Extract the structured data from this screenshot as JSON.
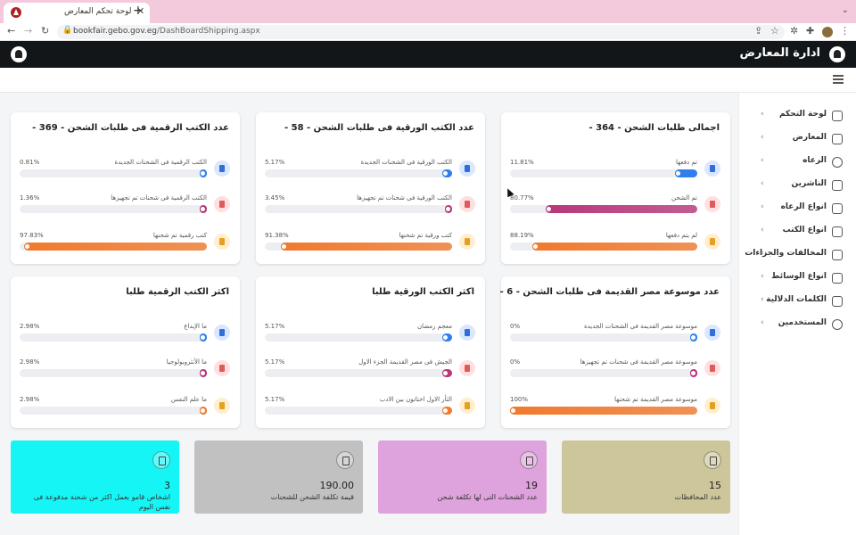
{
  "browser": {
    "tab_title": "لوحة تحكم المعارض",
    "url_host": "bookfair.gebo.gov.eg",
    "url_path": "/DashBoardShipping.aspx"
  },
  "app": {
    "title": "ادارة المعارض"
  },
  "sidebar": {
    "items": [
      {
        "label": "لوحة التحكم",
        "icon": "chart-icon"
      },
      {
        "label": "المعارض",
        "icon": "home-icon"
      },
      {
        "label": "الرعاه",
        "icon": "gear-icon"
      },
      {
        "label": "الناشرين",
        "icon": "lock-icon"
      },
      {
        "label": "انواع الرعاه",
        "icon": "box-icon"
      },
      {
        "label": "انواع الكتب",
        "icon": "bolt-icon"
      },
      {
        "label": "المخالفات والجزاءات",
        "icon": "grid-icon"
      },
      {
        "label": "انواع الوسائط",
        "icon": "document-icon"
      },
      {
        "label": "الكلمات الدلالية",
        "icon": "document-icon"
      },
      {
        "label": "المستخدمين",
        "icon": "users-icon"
      }
    ]
  },
  "cards": [
    {
      "title": "اجمالى طلبات الشحن - 364 -",
      "rows": [
        {
          "label": "تم دفعها",
          "pct": "11.81%",
          "value": 11.81,
          "color": "#2f80ed",
          "icon_bg": "#dbe7ff",
          "icon_color": "#2f6fdc",
          "icon": "bookmark-icon"
        },
        {
          "label": "تم الشحن",
          "pct": "80.77%",
          "value": 80.77,
          "color": "#b8387a",
          "icon_bg": "#ffe0e0",
          "icon_color": "#e05a5a",
          "icon": "book-icon"
        },
        {
          "label": "لم يتم دفعها",
          "pct": "88.19%",
          "value": 88.19,
          "color": "#f07a2e",
          "icon_bg": "#ffefd0",
          "icon_color": "#e6a020",
          "icon": "bookmark-icon"
        }
      ]
    },
    {
      "title": "عدد الكتب الورقية فى طلبات الشحن - 58 -",
      "rows": [
        {
          "label": "الكتب الورقية فى الشحنات الجديدة",
          "pct": "5.17%",
          "value": 5.17,
          "color": "#2f80ed",
          "icon_bg": "#dbe7ff",
          "icon_color": "#2f6fdc",
          "icon": "bookmark-icon"
        },
        {
          "label": "الكتب الورقية فى شحنات تم تجهيزها",
          "pct": "3.45%",
          "value": 3.45,
          "color": "#b8387a",
          "icon_bg": "#ffe0e0",
          "icon_color": "#e05a5a",
          "icon": "book-icon"
        },
        {
          "label": "كتب ورقية تم شحنها",
          "pct": "91.38%",
          "value": 91.38,
          "color": "#f07a2e",
          "icon_bg": "#ffefd0",
          "icon_color": "#e6a020",
          "icon": "bookmark-icon"
        }
      ]
    },
    {
      "title": "عدد الكتب الرقمية فى طلبات الشحن - 369 -",
      "rows": [
        {
          "label": "الكتب الرقمية فى الشحنات الجديدة",
          "pct": "0.81%",
          "value": 0.81,
          "color": "#2f80ed",
          "icon_bg": "#dbe7ff",
          "icon_color": "#2f6fdc",
          "icon": "bookmark-icon"
        },
        {
          "label": "الكتب الرقمية فى شحنات تم تجهيزها",
          "pct": "1.36%",
          "value": 1.36,
          "color": "#b8387a",
          "icon_bg": "#ffe0e0",
          "icon_color": "#e05a5a",
          "icon": "book-icon"
        },
        {
          "label": "كتب رقمية تم شحنها",
          "pct": "97.83%",
          "value": 97.83,
          "color": "#f07a2e",
          "icon_bg": "#ffefd0",
          "icon_color": "#e6a020",
          "icon": "bookmark-icon"
        }
      ]
    },
    {
      "title": "عدد موسوعة مصر القديمة فى طلبات الشحن - 6 -",
      "rows": [
        {
          "label": "موسوعة مصر القديمة فى الشحنات الجديدة",
          "pct": "0%",
          "value": 0,
          "color": "#2f80ed",
          "icon_bg": "#dbe7ff",
          "icon_color": "#2f6fdc",
          "icon": "bookmark-icon"
        },
        {
          "label": "موسوعة مصر القديمة فى شحنات تم تجهيزها",
          "pct": "0%",
          "value": 0,
          "color": "#b8387a",
          "icon_bg": "#ffe0e0",
          "icon_color": "#e05a5a",
          "icon": "book-icon"
        },
        {
          "label": "موسوعة مصر القديمة تم شحنها",
          "pct": "100%",
          "value": 100,
          "color": "#f07a2e",
          "icon_bg": "#ffefd0",
          "icon_color": "#e6a020",
          "icon": "bookmark-icon"
        }
      ]
    },
    {
      "title": "اكثر الكتب الورقية طلبا",
      "rows": [
        {
          "label": "معجم رمضان",
          "pct": "5.17%",
          "value": 5.17,
          "color": "#2f80ed",
          "icon_bg": "#dbe7ff",
          "icon_color": "#2f6fdc",
          "icon": "bookmark-icon"
        },
        {
          "label": "الجيش فى مصر القديمة الجزء الاول",
          "pct": "5.17%",
          "value": 5.17,
          "color": "#b8387a",
          "icon_bg": "#ffe0e0",
          "icon_color": "#e05a5a",
          "icon": "book-icon"
        },
        {
          "label": "الثأر الاول اختانون بين الادب",
          "pct": "5.17%",
          "value": 5.17,
          "color": "#f07a2e",
          "icon_bg": "#ffefd0",
          "icon_color": "#e6a020",
          "icon": "bookmark-icon"
        }
      ]
    },
    {
      "title": "اكثر الكتب الرقمية طلبا",
      "rows": [
        {
          "label": "ما الإبداع",
          "pct": "2.98%",
          "value": 2.98,
          "color": "#2f80ed",
          "icon_bg": "#dbe7ff",
          "icon_color": "#2f6fdc",
          "icon": "bookmark-icon"
        },
        {
          "label": "ما الأنثروبولوجيا",
          "pct": "2.98%",
          "value": 2.98,
          "color": "#b8387a",
          "icon_bg": "#ffe0e0",
          "icon_color": "#e05a5a",
          "icon": "book-icon"
        },
        {
          "label": "ما علم النفس",
          "pct": "2.98%",
          "value": 2.98,
          "color": "#f07a2e",
          "icon_bg": "#ffefd0",
          "icon_color": "#e6a020",
          "icon": "bookmark-icon"
        }
      ]
    }
  ],
  "tiles": [
    {
      "value": "15",
      "label": "عدد المحافظات",
      "bg": "#cdc69a",
      "icon": "layers-icon"
    },
    {
      "value": "19",
      "label": "عدد الشحنات التى لها تكلفة شحن",
      "bg": "#dea2dc",
      "icon": "user-icon"
    },
    {
      "value": "190.00",
      "label": "قيمة تكلفة الشحن للشحنات",
      "bg": "#c1c1c1",
      "icon": "edit-icon"
    },
    {
      "value": "3",
      "label": "اشخاص قامو بعمل اكثر من شحنة مدفوعة فى نفس اليوم",
      "bg": "#15f5f5",
      "icon": "document-icon"
    }
  ]
}
